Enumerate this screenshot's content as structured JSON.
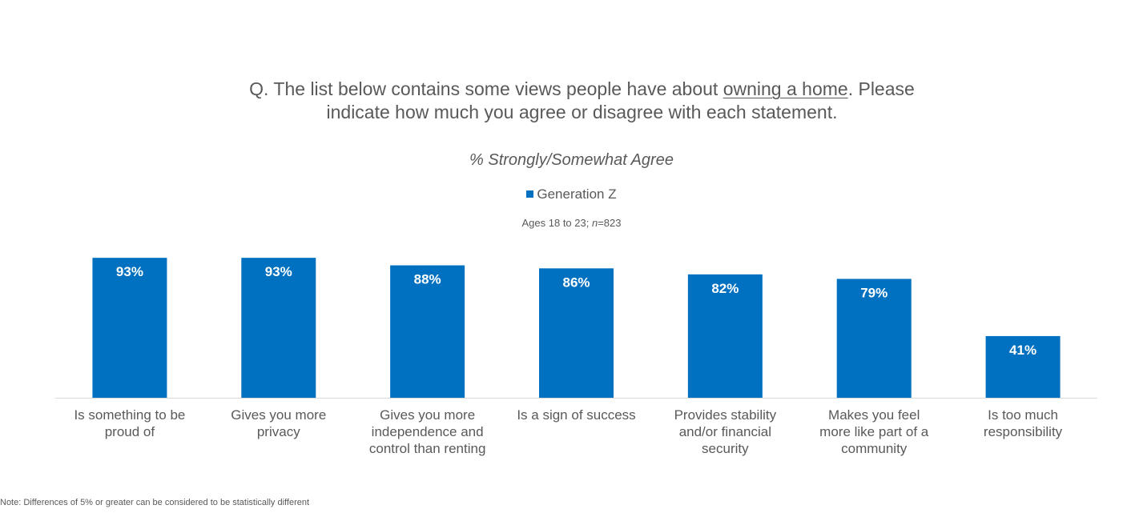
{
  "question": {
    "prefix": "Q. The list below contains some views people have about ",
    "underlined": "owning a home",
    "line1_suffix": ". Please",
    "line2": "indicate how much you agree or disagree with each statement."
  },
  "chart_data": {
    "type": "bar",
    "title": "% Strongly/Somewhat Agree",
    "subtitle_ages": "Ages 18 to 23; ",
    "subtitle_n_label": "n",
    "subtitle_n_value": "=823",
    "categories": [
      [
        "Is something to be",
        "proud of"
      ],
      [
        "Gives you more",
        "privacy"
      ],
      [
        "Gives you more",
        "independence and",
        "control than renting"
      ],
      [
        "Is a sign of success"
      ],
      [
        "Provides stability",
        "and/or financial",
        "security"
      ],
      [
        "Makes you feel",
        "more like part of a",
        "community"
      ],
      [
        "Is too much",
        "responsibility"
      ]
    ],
    "series": [
      {
        "name": "Generation Z",
        "values": [
          93,
          93,
          88,
          86,
          82,
          79,
          41
        ],
        "labels": [
          "93%",
          "93%",
          "88%",
          "86%",
          "82%",
          "79%",
          "41%"
        ],
        "color": "#0070C0"
      }
    ],
    "ylim": [
      0,
      100
    ],
    "grid": false,
    "legend_position": "top-center"
  },
  "note": "Note:  Differences of 5% or greater can be considered to be statistically different"
}
